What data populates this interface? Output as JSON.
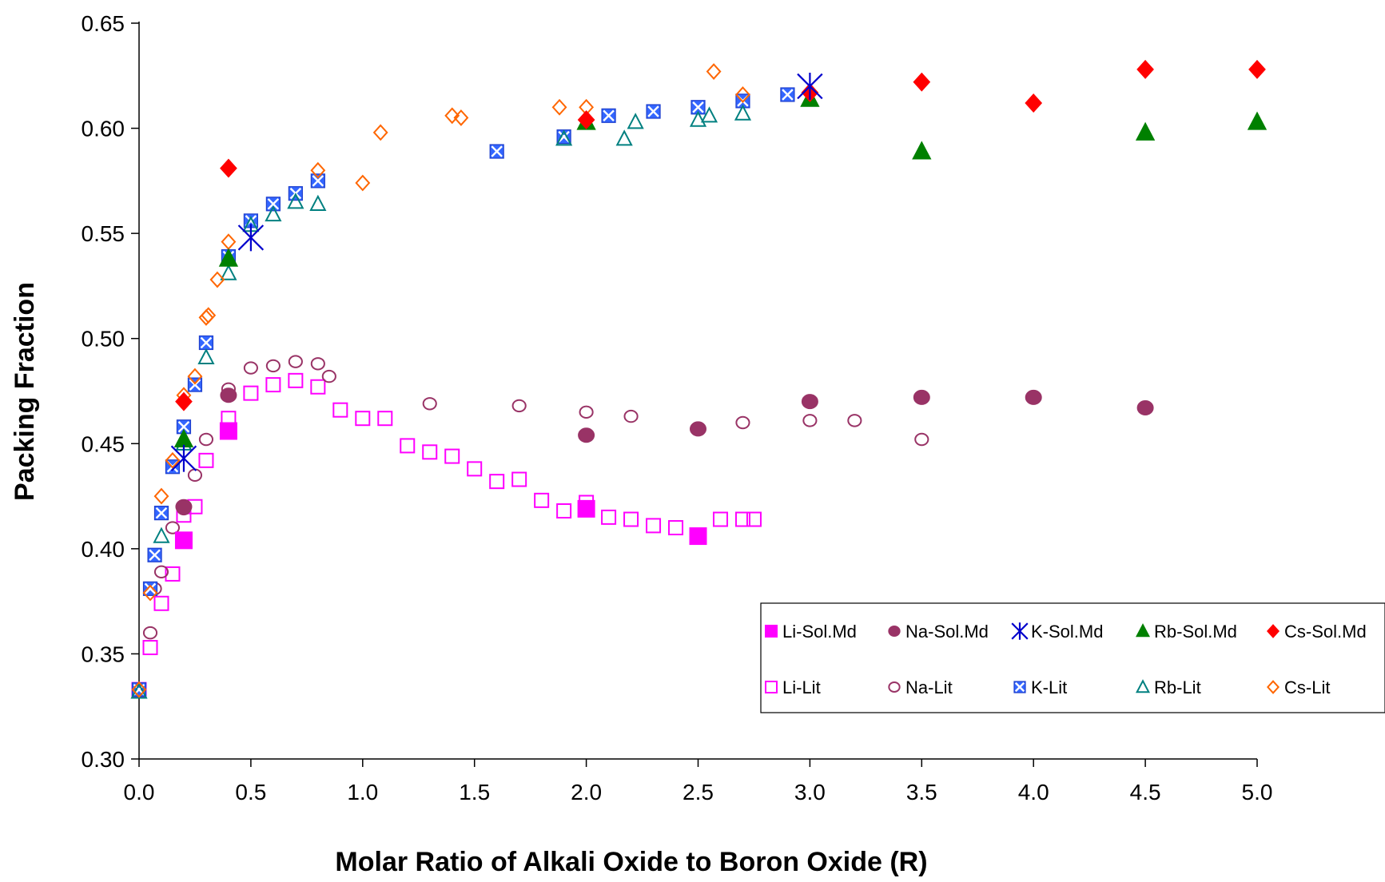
{
  "chart_data": {
    "type": "scatter",
    "title": "",
    "xlabel": "Molar Ratio of Alkali Oxide to Boron Oxide (R)",
    "ylabel": "Packing Fraction",
    "xlim": [
      0,
      5
    ],
    "ylim": [
      0.3,
      0.65
    ],
    "xticks": [
      "0.0",
      "0.5",
      "1.0",
      "1.5",
      "2.0",
      "2.5",
      "3.0",
      "3.5",
      "4.0",
      "4.5",
      "5.0"
    ],
    "yticks": [
      "0.30",
      "0.35",
      "0.40",
      "0.45",
      "0.50",
      "0.55",
      "0.60",
      "0.65"
    ],
    "grid": false,
    "legend_position": "lower-right",
    "series": [
      {
        "name": "Li-Sol.Md",
        "marker": "square",
        "filled": true,
        "color": "#ff00ff",
        "points": [
          [
            0.2,
            0.404
          ],
          [
            0.4,
            0.456
          ],
          [
            2.0,
            0.419
          ],
          [
            2.5,
            0.406
          ]
        ]
      },
      {
        "name": "Na-Sol.Md",
        "marker": "circle",
        "filled": true,
        "color": "#993366",
        "points": [
          [
            0.2,
            0.42
          ],
          [
            0.4,
            0.473
          ],
          [
            2.0,
            0.454
          ],
          [
            2.5,
            0.457
          ],
          [
            3.0,
            0.47
          ],
          [
            3.5,
            0.472
          ],
          [
            4.0,
            0.472
          ],
          [
            4.5,
            0.467
          ]
        ]
      },
      {
        "name": "K-Sol.Md",
        "marker": "star",
        "filled": false,
        "color": "#0000cc",
        "points": [
          [
            0.2,
            0.443
          ],
          [
            0.5,
            0.548
          ],
          [
            3.0,
            0.62
          ]
        ]
      },
      {
        "name": "Rb-Sol.Md",
        "marker": "triangle",
        "filled": true,
        "color": "#008000",
        "points": [
          [
            0.2,
            0.452
          ],
          [
            0.4,
            0.538
          ],
          [
            2.0,
            0.603
          ],
          [
            3.0,
            0.614
          ],
          [
            3.5,
            0.589
          ],
          [
            4.5,
            0.598
          ],
          [
            5.0,
            0.603
          ]
        ]
      },
      {
        "name": "Cs-Sol.Md",
        "marker": "diamond",
        "filled": true,
        "color": "#ff0000",
        "points": [
          [
            0.2,
            0.47
          ],
          [
            0.4,
            0.581
          ],
          [
            2.0,
            0.604
          ],
          [
            3.0,
            0.617
          ],
          [
            3.5,
            0.622
          ],
          [
            4.0,
            0.612
          ],
          [
            4.5,
            0.628
          ],
          [
            5.0,
            0.628
          ]
        ]
      },
      {
        "name": "Li-Lit",
        "marker": "square",
        "filled": false,
        "color": "#ff00ff",
        "points": [
          [
            0.0,
            0.333
          ],
          [
            0.05,
            0.353
          ],
          [
            0.1,
            0.374
          ],
          [
            0.15,
            0.388
          ],
          [
            0.2,
            0.416
          ],
          [
            0.25,
            0.42
          ],
          [
            0.3,
            0.442
          ],
          [
            0.4,
            0.462
          ],
          [
            0.5,
            0.474
          ],
          [
            0.6,
            0.478
          ],
          [
            0.7,
            0.48
          ],
          [
            0.8,
            0.477
          ],
          [
            0.9,
            0.466
          ],
          [
            1.0,
            0.462
          ],
          [
            1.1,
            0.462
          ],
          [
            1.2,
            0.449
          ],
          [
            1.3,
            0.446
          ],
          [
            1.4,
            0.444
          ],
          [
            1.5,
            0.438
          ],
          [
            1.6,
            0.432
          ],
          [
            1.7,
            0.433
          ],
          [
            1.8,
            0.423
          ],
          [
            1.9,
            0.418
          ],
          [
            2.0,
            0.422
          ],
          [
            2.1,
            0.415
          ],
          [
            2.2,
            0.414
          ],
          [
            2.3,
            0.411
          ],
          [
            2.4,
            0.41
          ],
          [
            2.6,
            0.414
          ],
          [
            2.7,
            0.414
          ],
          [
            2.75,
            0.414
          ]
        ]
      },
      {
        "name": "Na-Lit",
        "marker": "circle",
        "filled": false,
        "color": "#993366",
        "points": [
          [
            0.0,
            0.333
          ],
          [
            0.05,
            0.36
          ],
          [
            0.07,
            0.381
          ],
          [
            0.1,
            0.389
          ],
          [
            0.15,
            0.41
          ],
          [
            0.2,
            0.419
          ],
          [
            0.25,
            0.435
          ],
          [
            0.3,
            0.452
          ],
          [
            0.4,
            0.476
          ],
          [
            0.5,
            0.486
          ],
          [
            0.6,
            0.487
          ],
          [
            0.7,
            0.489
          ],
          [
            0.8,
            0.488
          ],
          [
            0.85,
            0.482
          ],
          [
            1.3,
            0.469
          ],
          [
            1.7,
            0.468
          ],
          [
            2.0,
            0.465
          ],
          [
            2.2,
            0.463
          ],
          [
            2.7,
            0.46
          ],
          [
            3.0,
            0.461
          ],
          [
            3.2,
            0.461
          ],
          [
            3.5,
            0.452
          ]
        ]
      },
      {
        "name": "K-Lit",
        "marker": "boxed-x",
        "filled": true,
        "color": "#3366ff",
        "points": [
          [
            0.0,
            0.333
          ],
          [
            0.05,
            0.381
          ],
          [
            0.07,
            0.397
          ],
          [
            0.1,
            0.417
          ],
          [
            0.15,
            0.439
          ],
          [
            0.2,
            0.458
          ],
          [
            0.25,
            0.478
          ],
          [
            0.3,
            0.498
          ],
          [
            0.4,
            0.539
          ],
          [
            0.5,
            0.556
          ],
          [
            0.6,
            0.564
          ],
          [
            0.7,
            0.569
          ],
          [
            0.8,
            0.575
          ],
          [
            1.6,
            0.589
          ],
          [
            1.9,
            0.596
          ],
          [
            2.1,
            0.606
          ],
          [
            2.3,
            0.608
          ],
          [
            2.5,
            0.61
          ],
          [
            2.7,
            0.613
          ],
          [
            2.9,
            0.616
          ]
        ]
      },
      {
        "name": "Rb-Lit",
        "marker": "triangle",
        "filled": false,
        "color": "#008080",
        "points": [
          [
            0.0,
            0.332
          ],
          [
            0.1,
            0.406
          ],
          [
            0.2,
            0.45
          ],
          [
            0.3,
            0.491
          ],
          [
            0.4,
            0.531
          ],
          [
            0.5,
            0.554
          ],
          [
            0.6,
            0.559
          ],
          [
            0.7,
            0.565
          ],
          [
            0.8,
            0.564
          ],
          [
            1.9,
            0.595
          ],
          [
            2.17,
            0.595
          ],
          [
            2.22,
            0.603
          ],
          [
            2.5,
            0.604
          ],
          [
            2.55,
            0.606
          ],
          [
            2.7,
            0.607
          ]
        ]
      },
      {
        "name": "Cs-Lit",
        "marker": "diamond",
        "filled": false,
        "color": "#ff6600",
        "points": [
          [
            0.0,
            0.333
          ],
          [
            0.05,
            0.379
          ],
          [
            0.1,
            0.425
          ],
          [
            0.15,
            0.442
          ],
          [
            0.2,
            0.473
          ],
          [
            0.25,
            0.482
          ],
          [
            0.3,
            0.51
          ],
          [
            0.31,
            0.511
          ],
          [
            0.35,
            0.528
          ],
          [
            0.4,
            0.546
          ],
          [
            0.8,
            0.58
          ],
          [
            1.0,
            0.574
          ],
          [
            1.08,
            0.598
          ],
          [
            1.4,
            0.606
          ],
          [
            1.44,
            0.605
          ],
          [
            1.88,
            0.61
          ],
          [
            2.0,
            0.61
          ],
          [
            2.57,
            0.627
          ],
          [
            2.7,
            0.616
          ]
        ]
      }
    ]
  }
}
